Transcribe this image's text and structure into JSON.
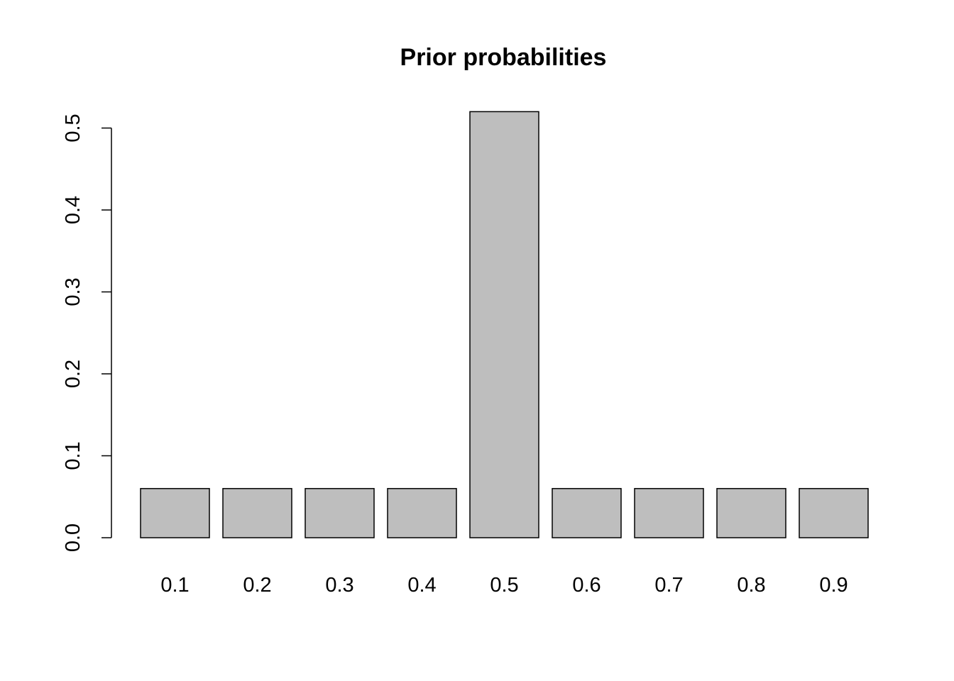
{
  "chart_data": {
    "type": "bar",
    "title": "Prior probabilities",
    "xlabel": "",
    "ylabel": "",
    "categories": [
      "0.1",
      "0.2",
      "0.3",
      "0.4",
      "0.5",
      "0.6",
      "0.7",
      "0.8",
      "0.9"
    ],
    "values": [
      0.06,
      0.06,
      0.06,
      0.06,
      0.52,
      0.06,
      0.06,
      0.06,
      0.06
    ],
    "y_ticks": [
      "0.0",
      "0.1",
      "0.2",
      "0.3",
      "0.4",
      "0.5"
    ],
    "ylim": [
      0,
      0.52
    ],
    "grid": false,
    "legend": "none",
    "bar_color": "#bebebe",
    "bar_border_color": "#000000"
  }
}
